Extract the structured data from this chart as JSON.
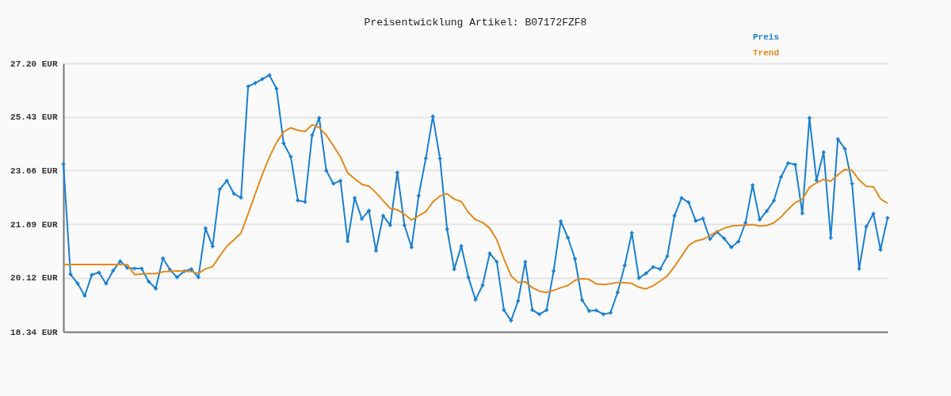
{
  "chart_data": {
    "type": "line",
    "title": "Preisentwicklung Artikel: B07172FZF8",
    "categories": [
      null,
      null,
      null,
      null,
      null,
      null,
      null,
      null,
      null,
      null,
      null,
      null,
      null,
      null,
      null,
      null,
      null,
      null,
      null,
      null,
      null,
      null,
      null,
      null,
      null,
      null,
      null,
      null,
      null,
      null,
      null,
      null,
      null,
      null,
      null,
      null,
      null,
      null,
      null,
      null,
      null,
      null,
      null,
      null,
      null,
      null,
      null,
      null,
      null,
      null,
      null,
      null,
      null,
      null,
      null,
      null,
      null,
      null,
      null,
      null,
      null,
      null,
      null,
      null,
      null,
      null,
      null,
      null,
      null,
      null,
      null,
      null,
      null,
      null,
      null,
      null,
      null,
      null,
      null,
      null,
      null,
      null,
      null,
      null,
      null,
      null,
      null,
      null,
      null,
      null,
      null,
      null,
      null,
      null,
      null,
      null,
      null,
      null,
      null,
      null,
      null,
      null,
      null,
      null,
      null,
      null,
      null,
      null,
      null,
      null,
      null,
      null,
      null,
      null,
      null,
      null,
      null
    ],
    "series": [
      {
        "name": "Preis",
        "color": "#1a7fcf",
        "marker": "cross",
        "values": [
          23.87,
          20.24,
          19.94,
          19.53,
          20.22,
          20.3,
          19.93,
          20.36,
          20.67,
          20.45,
          20.43,
          20.43,
          20.0,
          19.77,
          20.77,
          20.39,
          20.14,
          20.34,
          20.41,
          20.14,
          21.76,
          21.16,
          23.04,
          23.33,
          22.9,
          22.77,
          26.44,
          26.55,
          26.68,
          26.81,
          26.36,
          24.56,
          24.12,
          22.68,
          22.63,
          24.83,
          25.4,
          23.66,
          23.23,
          23.33,
          21.33,
          22.76,
          22.07,
          22.34,
          21.02,
          22.17,
          21.86,
          23.6,
          21.86,
          21.13,
          22.83,
          24.06,
          25.45,
          24.06,
          21.73,
          20.41,
          21.17,
          20.14,
          19.4,
          19.88,
          20.93,
          20.65,
          19.06,
          18.71,
          19.36,
          20.65,
          19.06,
          18.92,
          19.06,
          20.35,
          21.99,
          21.45,
          20.75,
          19.39,
          19.03,
          19.05,
          18.92,
          18.97,
          19.64,
          20.53,
          21.61,
          20.11,
          20.27,
          20.48,
          20.41,
          20.84,
          22.17,
          22.76,
          22.61,
          22.0,
          22.08,
          21.4,
          21.64,
          21.42,
          21.13,
          21.32,
          21.94,
          23.18,
          22.04,
          22.33,
          22.67,
          23.45,
          23.91,
          23.86,
          22.25,
          25.4,
          23.34,
          24.27,
          21.44,
          24.7,
          24.38,
          23.23,
          20.42,
          21.81,
          22.24,
          21.05,
          22.1
        ]
      },
      {
        "name": "Trend",
        "color": "#e08a1e",
        "marker": "none",
        "values": [
          20.56,
          20.56,
          20.56,
          20.56,
          20.56,
          20.56,
          20.56,
          20.56,
          20.56,
          20.56,
          20.23,
          20.25,
          20.26,
          20.26,
          20.32,
          20.34,
          20.35,
          20.34,
          20.33,
          20.27,
          20.42,
          20.49,
          20.84,
          21.17,
          21.38,
          21.6,
          22.23,
          22.89,
          23.54,
          24.11,
          24.59,
          24.94,
          25.07,
          24.99,
          24.95,
          25.17,
          25.08,
          24.83,
          24.48,
          24.11,
          23.59,
          23.39,
          23.21,
          23.15,
          22.93,
          22.67,
          22.41,
          22.37,
          22.22,
          22.03,
          22.17,
          22.3,
          22.63,
          22.82,
          22.9,
          22.72,
          22.64,
          22.28,
          22.04,
          21.95,
          21.76,
          21.38,
          20.75,
          20.19,
          19.97,
          19.99,
          19.8,
          19.68,
          19.64,
          19.71,
          19.8,
          19.87,
          20.04,
          20.1,
          20.07,
          19.92,
          19.9,
          19.93,
          19.97,
          19.96,
          19.94,
          19.81,
          19.76,
          19.86,
          20.02,
          20.19,
          20.49,
          20.84,
          21.19,
          21.34,
          21.39,
          21.52,
          21.65,
          21.76,
          21.83,
          21.85,
          21.86,
          21.88,
          21.83,
          21.85,
          21.94,
          22.13,
          22.38,
          22.61,
          22.71,
          23.11,
          23.26,
          23.37,
          23.31,
          23.52,
          23.7,
          23.67,
          23.35,
          23.14,
          23.13,
          22.73,
          22.58
        ]
      }
    ],
    "ylim": [
      18.34,
      27.2
    ],
    "yticks": [
      {
        "value": 18.34,
        "label": "18.34 EUR"
      },
      {
        "value": 20.12,
        "label": "20.12 EUR"
      },
      {
        "value": 21.89,
        "label": "21.89 EUR"
      },
      {
        "value": 23.66,
        "label": "23.66 EUR"
      },
      {
        "value": 25.43,
        "label": "25.43 EUR"
      },
      {
        "value": 27.2,
        "label": "27.20 EUR"
      }
    ],
    "grid": "y",
    "legend": "top right",
    "tick_labels": "y",
    "line_style": "solid"
  }
}
